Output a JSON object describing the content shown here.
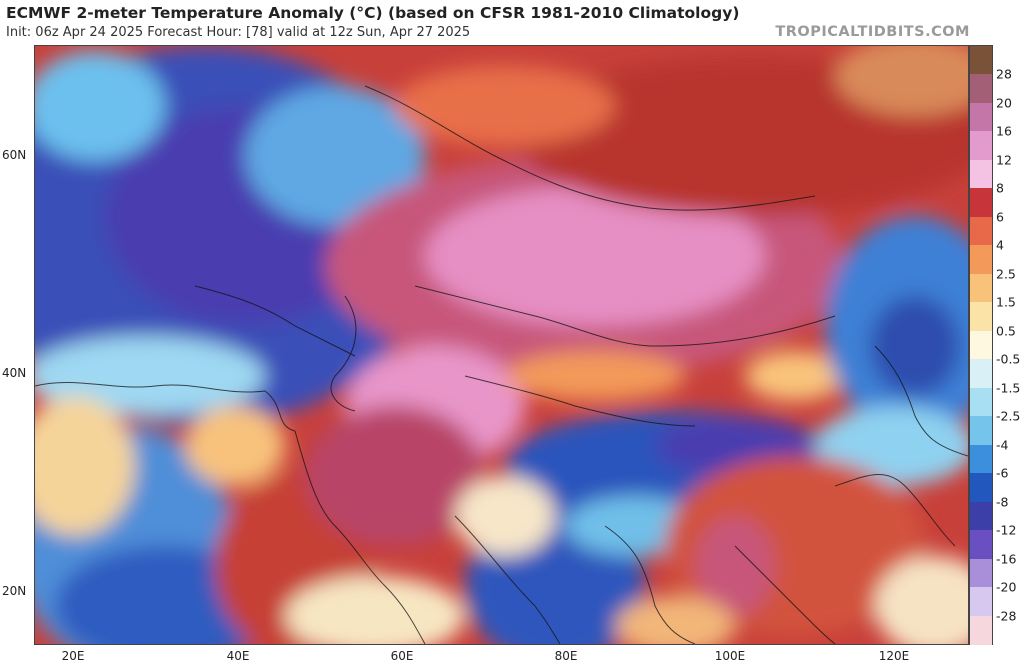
{
  "header": {
    "title": "ECMWF 2-meter Temperature Anomaly (°C) (based on CFSR 1981-2010 Climatology)",
    "subtitle": "Init: 06z Apr 24 2025   Forecast Hour: [78]   valid at 12z Sun, Apr 27 2025",
    "watermark": "TROPICALTIDBITS.COM"
  },
  "map": {
    "lat_labels": [
      "60N",
      "40N",
      "20N"
    ],
    "lon_labels": [
      "20E",
      "40E",
      "60E",
      "80E",
      "100E",
      "120E"
    ]
  },
  "colorbar": {
    "labels": [
      "28",
      "20",
      "16",
      "12",
      "8",
      "6",
      "4",
      "2.5",
      "1.5",
      "0.5",
      "-0.5",
      "-1.5",
      "-2.5",
      "-4",
      "-6",
      "-8",
      "-12",
      "-16",
      "-20",
      "-28"
    ],
    "colors": [
      "#7a5238",
      "#a35f75",
      "#c576a8",
      "#e39bcd",
      "#f4c3e4",
      "#c7353b",
      "#e8684a",
      "#f39a5a",
      "#f8c27b",
      "#fbe3a8",
      "#fdf8df",
      "#d9f0f7",
      "#a9dff2",
      "#74c4ec",
      "#3c8fdc",
      "#2257be",
      "#3d3fa8",
      "#6a4fc0",
      "#a98ed9",
      "#d7c8ef",
      "#f5d7dd"
    ]
  }
}
